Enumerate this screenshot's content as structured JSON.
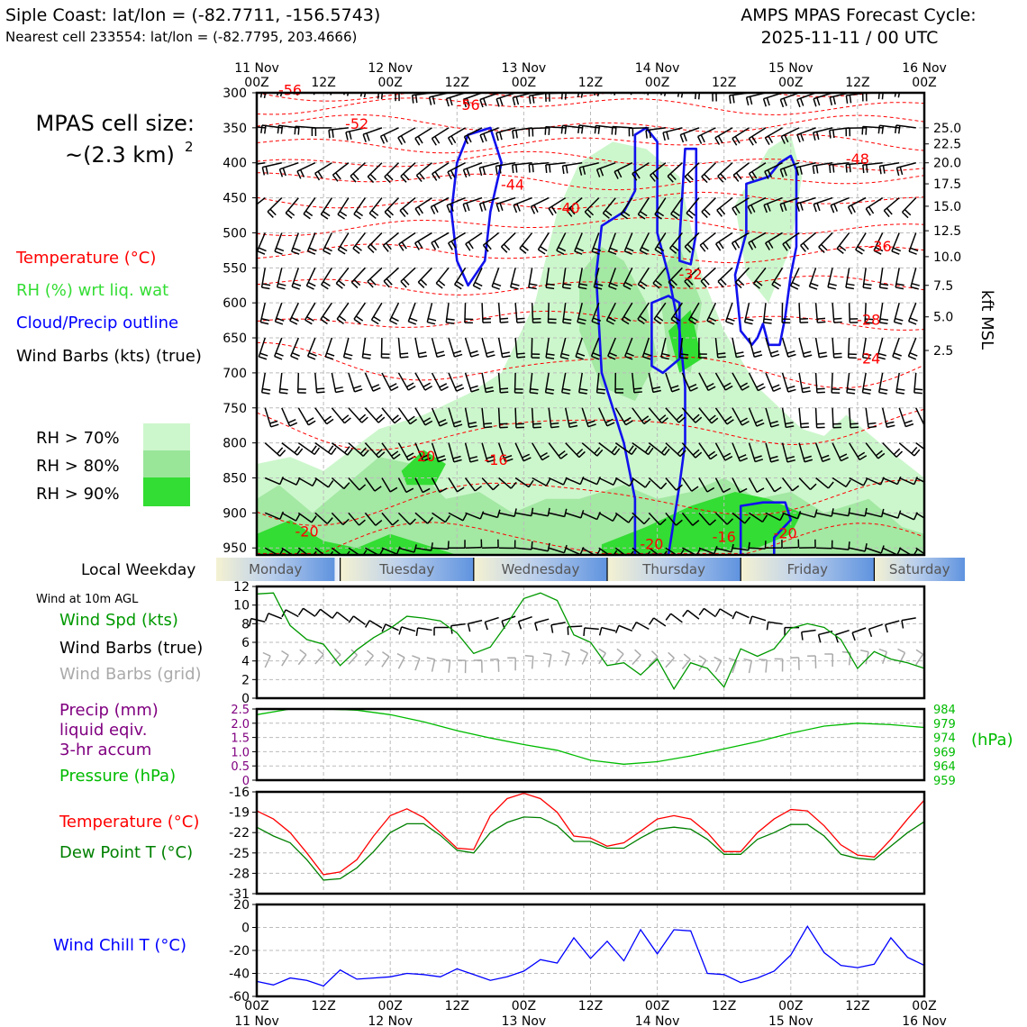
{
  "header": {
    "title_line1": "Siple Coast: lat/lon = (-82.7711, -156.5743)",
    "title_line2": "Nearest cell 233554: lat/lon = (-82.7795, 203.4666)",
    "cycle_line1": "AMPS MPAS Forecast Cycle:",
    "cycle_line2": "2025-11-11 / 00 UTC"
  },
  "cell_size": {
    "label": "MPAS cell size:",
    "value": "~(2.3 km)",
    "exponent": "2"
  },
  "legend_main": [
    {
      "text": "Temperature (°C)",
      "color": "#ff0000"
    },
    {
      "text": "RH (%) wrt liq. wat",
      "color": "#33dd33"
    },
    {
      "text": "Cloud/Precip outline",
      "color": "#0000ff"
    },
    {
      "text": "Wind Barbs (kts) (true)",
      "color": "#000000"
    }
  ],
  "rh_legend": [
    {
      "text": "RH > 70%",
      "color": "#ccf7cc"
    },
    {
      "text": "RH > 80%",
      "color": "#99e699"
    },
    {
      "text": "RH > 90%",
      "color": "#33dd33"
    }
  ],
  "weekday_bar": {
    "label": "Local Weekday",
    "days": [
      "Monday",
      "Tuesday",
      "Wednesday",
      "Thursday",
      "Friday",
      "Saturday"
    ]
  },
  "panel_labels": {
    "wind_sub": "Wind at 10m AGL",
    "wind_spd": "Wind Spd (kts)",
    "wind_barbs_true": "Wind Barbs (true)",
    "wind_barbs_grid": "Wind Barbs (grid)",
    "precip1": "Precip (mm)",
    "precip2": "liquid eqiv.",
    "precip3": "3-hr accum",
    "pressure": "Pressure (hPa)",
    "temp": "Temperature (°C)",
    "dewpoint": "Dew Point T (°C)",
    "windchill": "Wind Chill T (°C)",
    "kft": "kft MSL",
    "hpa_unit": "(hPa)"
  },
  "colors": {
    "temperature": "#ff0000",
    "dewpoint": "#008000",
    "rh": "#33dd33",
    "cloud": "#0000ff",
    "windspd": "#009900",
    "pressure": "#00bb00",
    "precip": "#800080",
    "windchill": "#0000ff",
    "grid_barbs": "#aaaaaa"
  },
  "chart_data": [
    {
      "type": "heatmap",
      "panel": "time-height cross section",
      "x_top_ticks": [
        {
          "d": "11 Nov",
          "t": "00Z"
        },
        {
          "d": "",
          "t": "12Z"
        },
        {
          "d": "12 Nov",
          "t": "00Z"
        },
        {
          "d": "",
          "t": "12Z"
        },
        {
          "d": "13 Nov",
          "t": "00Z"
        },
        {
          "d": "",
          "t": "12Z"
        },
        {
          "d": "14 Nov",
          "t": "00Z"
        },
        {
          "d": "",
          "t": "12Z"
        },
        {
          "d": "15 Nov",
          "t": "00Z"
        },
        {
          "d": "",
          "t": "12Z"
        },
        {
          "d": "16 Nov",
          "t": "00Z"
        }
      ],
      "y_pressure_ticks": [
        300,
        350,
        400,
        450,
        500,
        550,
        600,
        650,
        700,
        750,
        800,
        850,
        900,
        950
      ],
      "ylim_hpa": [
        300,
        960
      ],
      "y_right_kft": [
        {
          "label": "25.0",
          "p": 350
        },
        {
          "label": "22.5",
          "p": 373
        },
        {
          "label": "20.0",
          "p": 400
        },
        {
          "label": "17.5",
          "p": 430
        },
        {
          "label": "15.0",
          "p": 462
        },
        {
          "label": "12.5",
          "p": 497
        },
        {
          "label": "10.0",
          "p": 534
        },
        {
          "label": "7.5",
          "p": 575
        },
        {
          "label": "5.0",
          "p": 620
        },
        {
          "label": "2.5",
          "p": 668
        }
      ],
      "temperature_contour_labels": [
        {
          "text": "-56",
          "h": 6,
          "p": 297
        },
        {
          "text": "-56",
          "h": 38,
          "p": 318
        },
        {
          "text": "-52",
          "h": 18,
          "p": 345
        },
        {
          "text": "-44",
          "h": 46,
          "p": 432
        },
        {
          "text": "-40",
          "h": 56,
          "p": 465
        },
        {
          "text": "-48",
          "h": 108,
          "p": 395
        },
        {
          "text": "-36",
          "h": 112,
          "p": 520
        },
        {
          "text": "-32",
          "h": 78,
          "p": 560
        },
        {
          "text": "-28",
          "h": 110,
          "p": 625
        },
        {
          "text": "-24",
          "h": 110,
          "p": 680
        },
        {
          "text": "-20",
          "h": 30,
          "p": 820
        },
        {
          "text": "-16",
          "h": 43,
          "p": 825
        },
        {
          "text": "-20",
          "h": 9,
          "p": 927
        },
        {
          "text": "-20",
          "h": 71,
          "p": 945
        },
        {
          "text": "-16",
          "h": 84,
          "p": 935
        },
        {
          "text": "-20",
          "h": 95,
          "p": 930
        }
      ]
    },
    {
      "type": "line",
      "panel": "10m wind speed",
      "x_hours": [
        0,
        3,
        6,
        9,
        12,
        15,
        18,
        21,
        24,
        27,
        30,
        33,
        36,
        39,
        42,
        45,
        48,
        51,
        54,
        57,
        60,
        63,
        66,
        69,
        72,
        75,
        78,
        81,
        84,
        87,
        90,
        93,
        96,
        99,
        102,
        105,
        108,
        111,
        114,
        117,
        120
      ],
      "series": [
        {
          "name": "Wind Spd (kts)",
          "values": [
            11.2,
            11.3,
            7.8,
            6.3,
            5.8,
            3.5,
            5.2,
            6.5,
            7.5,
            8.8,
            8.6,
            8.3,
            7.0,
            4.8,
            5.5,
            8.0,
            10.7,
            11.3,
            10.5,
            6.8,
            6.0,
            3.5,
            3.8,
            2.5,
            4.2,
            1.0,
            3.8,
            3.2,
            1.2,
            5.3,
            4.5,
            5.3,
            7.5,
            8.0,
            7.6,
            6.3,
            3.2,
            5.0,
            4.2,
            3.8,
            3.2
          ]
        }
      ],
      "ylim": [
        0,
        12
      ],
      "yticks": [
        0,
        2,
        4,
        6,
        8,
        10,
        12
      ]
    },
    {
      "type": "line",
      "panel": "pressure and precipitation",
      "x_hours": [
        0,
        6,
        12,
        18,
        24,
        30,
        36,
        42,
        48,
        54,
        60,
        66,
        72,
        78,
        84,
        90,
        96,
        102,
        108,
        114,
        120
      ],
      "series": [
        {
          "name": "Pressure (hPa)",
          "values": [
            982.0,
            984.0,
            984.0,
            983.6,
            982.0,
            979.5,
            976.4,
            973.8,
            971.5,
            969.5,
            966.0,
            964.6,
            965.5,
            967.5,
            970.0,
            972.5,
            975.5,
            978.0,
            979.0,
            978.5,
            977.5
          ]
        }
      ],
      "precip_ticks": [
        "0",
        "0.5",
        "1.0",
        "1.5",
        "2.0",
        "2.5"
      ],
      "pressure_ticks": [
        "959",
        "964",
        "969",
        "974",
        "979",
        "984"
      ],
      "ylim": [
        959,
        984
      ]
    },
    {
      "type": "line",
      "panel": "temperature and dew point",
      "x_hours": [
        0,
        3,
        6,
        9,
        12,
        15,
        18,
        21,
        24,
        27,
        30,
        33,
        36,
        39,
        42,
        45,
        48,
        51,
        54,
        57,
        60,
        63,
        66,
        69,
        72,
        75,
        78,
        81,
        84,
        87,
        90,
        93,
        96,
        99,
        102,
        105,
        108,
        111,
        114,
        117,
        120
      ],
      "series": [
        {
          "name": "Temperature (°C)",
          "values": [
            -18.8,
            -20.0,
            -22.0,
            -25.0,
            -28.2,
            -27.8,
            -26.0,
            -22.5,
            -19.5,
            -18.5,
            -19.8,
            -22.0,
            -24.3,
            -24.5,
            -19.5,
            -17.0,
            -16.2,
            -17.0,
            -19.0,
            -22.5,
            -22.8,
            -24.0,
            -23.5,
            -21.8,
            -20.0,
            -19.5,
            -20.0,
            -22.0,
            -24.8,
            -24.8,
            -22.0,
            -20.0,
            -18.6,
            -18.8,
            -21.0,
            -23.8,
            -25.3,
            -25.6,
            -23.0,
            -20.0,
            -17.2
          ]
        },
        {
          "name": "Dew Point T (°C)",
          "values": [
            -21.2,
            -22.5,
            -23.5,
            -26.0,
            -29.0,
            -28.8,
            -27.2,
            -24.8,
            -22.0,
            -20.7,
            -20.7,
            -22.4,
            -24.6,
            -25.0,
            -22.0,
            -20.5,
            -19.7,
            -19.8,
            -21.0,
            -23.3,
            -23.3,
            -24.3,
            -24.3,
            -22.8,
            -21.5,
            -21.2,
            -21.5,
            -23.0,
            -25.2,
            -25.2,
            -23.0,
            -22.0,
            -20.8,
            -20.8,
            -22.5,
            -25.2,
            -25.8,
            -26.0,
            -24.0,
            -22.0,
            -20.4
          ]
        }
      ],
      "ylim": [
        -31,
        -16
      ],
      "yticks": [
        -31,
        -28,
        -25,
        -22,
        -19,
        -16
      ]
    },
    {
      "type": "line",
      "panel": "wind chill",
      "x_hours": [
        0,
        3,
        6,
        9,
        12,
        15,
        18,
        21,
        24,
        27,
        30,
        33,
        36,
        39,
        42,
        45,
        48,
        51,
        54,
        57,
        60,
        63,
        66,
        69,
        72,
        75,
        78,
        81,
        84,
        87,
        90,
        93,
        96,
        99,
        102,
        105,
        108,
        111,
        114,
        117,
        120
      ],
      "series": [
        {
          "name": "Wind Chill T (°C)",
          "values": [
            -47,
            -50,
            -44,
            -46,
            -51,
            -37,
            -45,
            -44,
            -43,
            -40,
            -41,
            -43,
            -36,
            -41,
            -46,
            -43,
            -38,
            -28,
            -31,
            -9,
            -27,
            -12,
            -29,
            -2,
            -23,
            -2,
            -3,
            -40,
            -41,
            -48,
            -44,
            -38,
            -24,
            1,
            -22,
            -33,
            -35,
            -32,
            -9,
            -26,
            -33
          ]
        }
      ],
      "ylim": [
        -60,
        20
      ],
      "yticks": [
        -60,
        -40,
        -20,
        0,
        20
      ]
    }
  ],
  "x_bottom_ticks": [
    {
      "t": "00Z",
      "d": "11 Nov"
    },
    {
      "t": "12Z",
      "d": ""
    },
    {
      "t": "00Z",
      "d": "12 Nov"
    },
    {
      "t": "12Z",
      "d": ""
    },
    {
      "t": "00Z",
      "d": "13 Nov"
    },
    {
      "t": "12Z",
      "d": ""
    },
    {
      "t": "00Z",
      "d": "14 Nov"
    },
    {
      "t": "12Z",
      "d": ""
    },
    {
      "t": "00Z",
      "d": "15 Nov"
    },
    {
      "t": "12Z",
      "d": ""
    },
    {
      "t": "00Z",
      "d": "16 Nov"
    }
  ]
}
